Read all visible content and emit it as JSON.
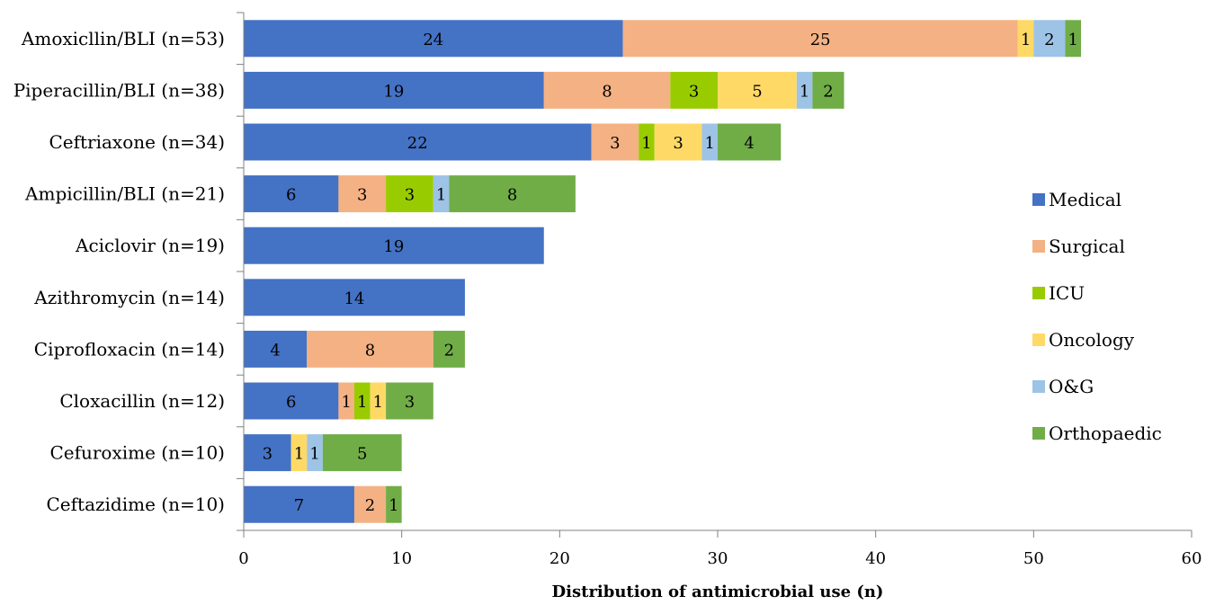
{
  "chart_data": {
    "type": "bar",
    "orientation": "horizontal",
    "stacked": true,
    "title": "",
    "xlabel": "Distribution of antimicrobial use (n)",
    "ylabel": "",
    "xlim": [
      0,
      60
    ],
    "x_ticks": [
      0,
      10,
      20,
      30,
      40,
      50,
      60
    ],
    "grid": false,
    "legend_position": "right",
    "categories": [
      "Amoxicllin/BLI (n=53)",
      "Piperacillin/BLI (n=38)",
      "Ceftriaxone (n=34)",
      "Ampicillin/BLI (n=21)",
      "Aciclovir (n=19)",
      "Azithromycin (n=14)",
      "Ciprofloxacin (n=14)",
      "Cloxacillin (n=12)",
      "Cefuroxime (n=10)",
      "Ceftazidime (n=10)"
    ],
    "series": [
      {
        "name": "Medical",
        "color": "#4472C4",
        "values": [
          24,
          19,
          22,
          6,
          19,
          14,
          4,
          6,
          3,
          7
        ]
      },
      {
        "name": "Surgical",
        "color": "#F4B183",
        "values": [
          25,
          8,
          3,
          3,
          0,
          0,
          8,
          1,
          0,
          2
        ]
      },
      {
        "name": "ICU",
        "color": "#99CC00",
        "values": [
          0,
          3,
          1,
          3,
          0,
          0,
          0,
          1,
          0,
          0
        ]
      },
      {
        "name": "Oncology",
        "color": "#FFD966",
        "values": [
          1,
          5,
          3,
          0,
          0,
          0,
          0,
          1,
          1,
          0
        ]
      },
      {
        "name": "O&G",
        "color": "#9DC3E6",
        "values": [
          2,
          1,
          1,
          1,
          0,
          0,
          0,
          0,
          1,
          0
        ]
      },
      {
        "name": "Orthopaedic",
        "color": "#70AD47",
        "values": [
          1,
          2,
          4,
          8,
          0,
          0,
          2,
          3,
          5,
          1
        ]
      }
    ]
  }
}
